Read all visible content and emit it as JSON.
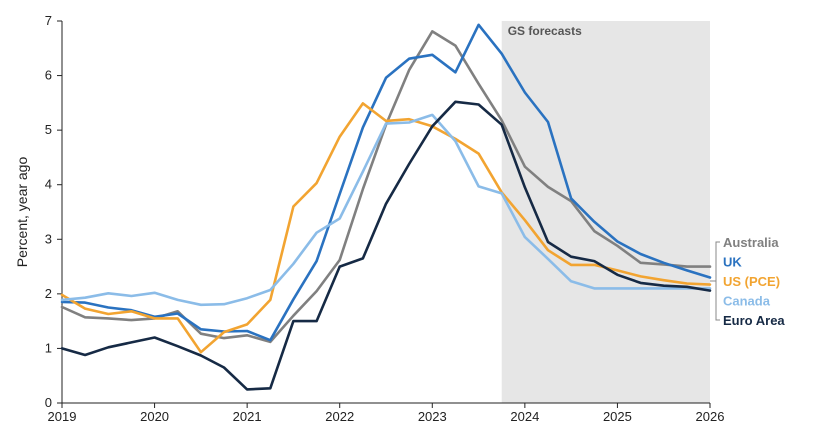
{
  "chart_data": {
    "type": "line",
    "title": "",
    "xlabel": "",
    "ylabel": "Percent, year ago",
    "xlim": [
      2019,
      2026
    ],
    "ylim": [
      0,
      7
    ],
    "x_ticks": [
      "2019",
      "2020",
      "2021",
      "2022",
      "2023",
      "2024",
      "2025",
      "2026"
    ],
    "y_ticks": [
      "0",
      "1",
      "2",
      "3",
      "4",
      "5",
      "6",
      "7"
    ],
    "grid": false,
    "forecast_region": {
      "start": 2023.75,
      "end": 2026,
      "label": "GS forecasts",
      "color": "#e6e6e6"
    },
    "legend_position": "right",
    "series": [
      {
        "name": "Australia",
        "color": "#808080",
        "x": [
          2019,
          2019.25,
          2019.5,
          2019.75,
          2020,
          2020.25,
          2020.5,
          2020.75,
          2021,
          2021.25,
          2021.5,
          2021.75,
          2022,
          2022.25,
          2022.5,
          2022.75,
          2023,
          2023.25,
          2023.5,
          2023.75,
          2024,
          2024.25,
          2024.5,
          2024.75,
          2025,
          2025.25,
          2025.5,
          2025.75,
          2026
        ],
        "y": [
          1.76,
          1.57,
          1.55,
          1.52,
          1.55,
          1.68,
          1.27,
          1.19,
          1.24,
          1.12,
          1.6,
          2.05,
          2.62,
          3.92,
          5.1,
          6.1,
          6.81,
          6.55,
          5.85,
          5.18,
          4.33,
          3.96,
          3.7,
          3.15,
          2.88,
          2.57,
          2.54,
          2.5,
          2.5
        ]
      },
      {
        "name": "UK",
        "color": "#2a72c0",
        "x": [
          2019,
          2019.25,
          2019.5,
          2019.75,
          2020,
          2020.25,
          2020.5,
          2020.75,
          2021,
          2021.25,
          2021.5,
          2021.75,
          2022,
          2022.25,
          2022.5,
          2022.75,
          2023,
          2023.25,
          2023.5,
          2023.75,
          2024,
          2024.25,
          2024.5,
          2024.75,
          2025,
          2025.25,
          2025.5,
          2025.75,
          2026
        ],
        "y": [
          1.85,
          1.84,
          1.75,
          1.7,
          1.58,
          1.64,
          1.35,
          1.31,
          1.32,
          1.15,
          1.9,
          2.6,
          3.83,
          5.05,
          5.96,
          6.31,
          6.38,
          6.06,
          6.93,
          6.4,
          5.69,
          5.15,
          3.75,
          3.32,
          2.96,
          2.73,
          2.57,
          2.43,
          2.3
        ]
      },
      {
        "name": "US (PCE)",
        "color": "#f2a431",
        "x": [
          2019,
          2019.25,
          2019.5,
          2019.75,
          2020,
          2020.25,
          2020.5,
          2020.75,
          2021,
          2021.25,
          2021.5,
          2021.75,
          2022,
          2022.25,
          2022.5,
          2022.75,
          2023,
          2023.25,
          2023.5,
          2023.75,
          2024,
          2024.25,
          2024.5,
          2024.75,
          2025,
          2025.25,
          2025.5,
          2025.75,
          2026
        ],
        "y": [
          1.98,
          1.73,
          1.63,
          1.68,
          1.55,
          1.55,
          0.93,
          1.3,
          1.44,
          1.89,
          3.6,
          4.03,
          4.88,
          5.49,
          5.17,
          5.2,
          5.07,
          4.84,
          4.57,
          3.86,
          3.35,
          2.8,
          2.53,
          2.53,
          2.43,
          2.32,
          2.25,
          2.19,
          2.17
        ]
      },
      {
        "name": "Canada",
        "color": "#8bbce8",
        "x": [
          2019,
          2019.25,
          2019.5,
          2019.75,
          2020,
          2020.25,
          2020.5,
          2020.75,
          2021,
          2021.25,
          2021.5,
          2021.75,
          2022,
          2022.25,
          2022.5,
          2022.75,
          2023,
          2023.25,
          2023.5,
          2023.75,
          2024,
          2024.25,
          2024.5,
          2024.75,
          2025,
          2025.25,
          2025.5,
          2025.75,
          2026
        ],
        "y": [
          1.89,
          1.93,
          2.01,
          1.96,
          2.02,
          1.89,
          1.8,
          1.81,
          1.92,
          2.07,
          2.55,
          3.12,
          3.38,
          4.24,
          5.12,
          5.14,
          5.28,
          4.8,
          3.97,
          3.84,
          3.04,
          2.64,
          2.23,
          2.1,
          2.1,
          2.1,
          2.1,
          2.1,
          2.1
        ]
      },
      {
        "name": "Euro Area",
        "color": "#162a45",
        "x": [
          2019,
          2019.25,
          2019.5,
          2019.75,
          2020,
          2020.25,
          2020.5,
          2020.75,
          2021,
          2021.25,
          2021.5,
          2021.75,
          2022,
          2022.25,
          2022.5,
          2022.75,
          2023,
          2023.25,
          2023.5,
          2023.75,
          2024,
          2024.25,
          2024.5,
          2024.75,
          2025,
          2025.25,
          2025.5,
          2025.75,
          2026
        ],
        "y": [
          1.0,
          0.88,
          1.02,
          1.11,
          1.2,
          1.04,
          0.87,
          0.65,
          0.25,
          0.27,
          1.5,
          1.5,
          2.5,
          2.65,
          3.65,
          4.38,
          5.07,
          5.52,
          5.47,
          5.1,
          3.95,
          2.95,
          2.68,
          2.6,
          2.35,
          2.2,
          2.15,
          2.13,
          2.06
        ]
      }
    ]
  }
}
